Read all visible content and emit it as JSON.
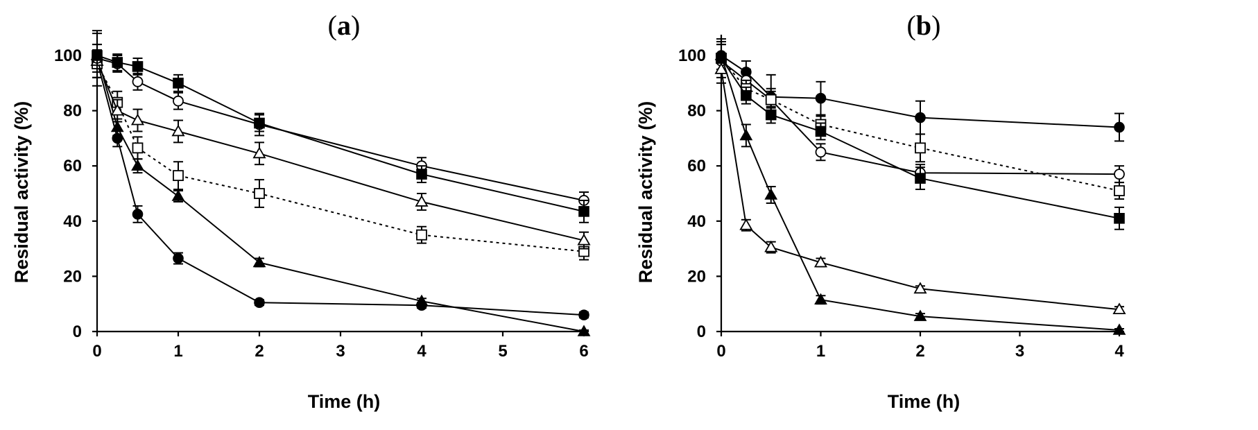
{
  "chart_data": [
    {
      "type": "line",
      "panel": "a",
      "title_open": "(",
      "title_letter": "a",
      "title_close": ")",
      "xlabel": "Time (h)",
      "ylabel": "Residual activity (%)",
      "xlim": [
        0,
        6
      ],
      "ylim": [
        0,
        100
      ],
      "xticks": [
        0,
        1,
        2,
        3,
        4,
        5,
        6
      ],
      "yticks": [
        0,
        20,
        40,
        60,
        80,
        100
      ],
      "series": [
        {
          "name": "filled-circle",
          "marker": "circle",
          "filled": true,
          "dotted": false,
          "x": [
            0,
            0.25,
            0.5,
            1,
            2,
            4,
            6
          ],
          "y": [
            98,
            70,
            42.5,
            26.5,
            10.5,
            9.5,
            6
          ],
          "err": [
            4,
            3,
            3,
            2,
            1,
            1,
            1
          ]
        },
        {
          "name": "filled-triangle",
          "marker": "triangle",
          "filled": true,
          "dotted": false,
          "x": [
            0,
            0.25,
            0.5,
            1,
            2,
            4,
            6
          ],
          "y": [
            100,
            74,
            60,
            49,
            25,
            11,
            0
          ],
          "err": [
            4,
            3,
            2.5,
            2,
            1.5,
            1,
            0.5
          ]
        },
        {
          "name": "open-square-dotted",
          "marker": "square",
          "filled": false,
          "dotted": true,
          "x": [
            0,
            0.25,
            0.5,
            1,
            2,
            4,
            6
          ],
          "y": [
            97,
            83,
            66.5,
            56.5,
            50,
            35,
            29
          ],
          "err": [
            5,
            4,
            4,
            5,
            5,
            3,
            3
          ]
        },
        {
          "name": "open-triangle",
          "marker": "triangle",
          "filled": false,
          "dotted": false,
          "x": [
            0,
            0.25,
            0.5,
            1,
            2,
            4,
            6
          ],
          "y": [
            98,
            80,
            76.5,
            72.5,
            64.5,
            47,
            33
          ],
          "err": [
            6,
            4,
            4,
            4,
            4,
            3,
            3
          ]
        },
        {
          "name": "open-circle",
          "marker": "circle",
          "filled": false,
          "dotted": false,
          "x": [
            0,
            0.25,
            0.5,
            1,
            2,
            4,
            6
          ],
          "y": [
            99,
            97,
            90.5,
            83.5,
            75,
            60,
            47.5
          ],
          "err": [
            10,
            3,
            3,
            3,
            4,
            3,
            3
          ]
        },
        {
          "name": "filled-square",
          "marker": "square",
          "filled": true,
          "dotted": false,
          "x": [
            0,
            0.25,
            0.5,
            1,
            2,
            4,
            6
          ],
          "y": [
            100,
            97.5,
            96,
            90,
            75.5,
            57,
            43.5
          ],
          "err": [
            8,
            3,
            3,
            3,
            3,
            3,
            4
          ]
        }
      ]
    },
    {
      "type": "line",
      "panel": "b",
      "title_open": "(",
      "title_letter": "b",
      "title_close": ")",
      "xlabel": "Time (h)",
      "ylabel": "Residual activity (%)",
      "xlim": [
        0,
        4
      ],
      "ylim": [
        0,
        100
      ],
      "xticks": [
        0,
        1,
        2,
        3,
        4
      ],
      "yticks": [
        0,
        20,
        40,
        60,
        80,
        100
      ],
      "series": [
        {
          "name": "filled-circle",
          "marker": "circle",
          "filled": true,
          "dotted": false,
          "x": [
            0,
            0.25,
            0.5,
            1,
            2,
            4
          ],
          "y": [
            100,
            94,
            85,
            84.5,
            77.5,
            74
          ],
          "err": [
            6,
            4,
            8,
            6,
            6,
            5
          ]
        },
        {
          "name": "open-circle",
          "marker": "circle",
          "filled": false,
          "dotted": false,
          "x": [
            0,
            0.25,
            0.5,
            1,
            2,
            4
          ],
          "y": [
            98,
            91,
            84,
            65,
            57.5,
            57
          ],
          "err": [
            6,
            4,
            4,
            3,
            3,
            3
          ]
        },
        {
          "name": "open-square-dotted",
          "marker": "square",
          "filled": false,
          "dotted": true,
          "x": [
            0,
            0.25,
            0.5,
            1,
            2,
            4
          ],
          "y": [
            99,
            88,
            84,
            75,
            66.5,
            51
          ],
          "err": [
            5,
            3,
            3,
            3,
            5,
            3
          ]
        },
        {
          "name": "filled-square",
          "marker": "square",
          "filled": true,
          "dotted": false,
          "x": [
            0,
            0.25,
            0.5,
            1,
            2,
            4
          ],
          "y": [
            99,
            85.5,
            78.5,
            72.5,
            55.5,
            41
          ],
          "err": [
            5,
            3,
            3,
            3,
            4,
            4
          ]
        },
        {
          "name": "filled-triangle",
          "marker": "triangle",
          "filled": true,
          "dotted": false,
          "x": [
            0,
            0.25,
            0.5,
            1,
            2,
            4
          ],
          "y": [
            100,
            71,
            49.5,
            11.5,
            5.5,
            0.5
          ],
          "err": [
            5,
            4,
            3,
            1.5,
            1,
            0.5
          ]
        },
        {
          "name": "open-triangle",
          "marker": "triangle",
          "filled": false,
          "dotted": false,
          "x": [
            0,
            0.25,
            0.5,
            1,
            2,
            4
          ],
          "y": [
            95,
            38.5,
            30.5,
            25,
            15.5,
            8
          ],
          "err": [
            5,
            2,
            2,
            1.5,
            1,
            1
          ]
        }
      ]
    }
  ]
}
